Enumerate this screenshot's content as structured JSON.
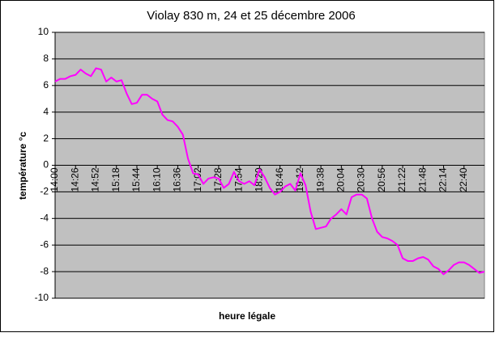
{
  "chart_data": {
    "type": "line",
    "title": "Violay 830 m, 24 et 25 décembre 2006",
    "x_label": "heure légale",
    "y_label": "température °c",
    "categories": [
      "14:00",
      null,
      null,
      null,
      "14:26",
      null,
      null,
      null,
      "14:52",
      null,
      null,
      null,
      "15:18",
      null,
      null,
      null,
      "15:44",
      null,
      null,
      null,
      "16:10",
      null,
      null,
      null,
      "16:36",
      null,
      null,
      null,
      "17:02",
      null,
      null,
      null,
      "17:28",
      null,
      null,
      null,
      "17:54",
      null,
      null,
      null,
      "18:20",
      null,
      null,
      null,
      "18:46",
      null,
      null,
      null,
      "19:12",
      null,
      null,
      null,
      "19:38",
      null,
      null,
      null,
      "20:04",
      null,
      null,
      null,
      "20:30",
      null,
      null,
      null,
      "20:56",
      null,
      null,
      null,
      "21:22",
      null,
      null,
      null,
      "21:48",
      null,
      null,
      null,
      "22:14",
      null,
      null,
      null,
      "22:40",
      null,
      null,
      null,
      null
    ],
    "series": [
      {
        "color": "#ff00ff",
        "values": [
          6.3,
          6.5,
          6.5,
          6.7,
          6.8,
          7.2,
          6.9,
          6.7,
          7.3,
          7.2,
          6.3,
          6.6,
          6.3,
          6.4,
          5.4,
          4.6,
          4.7,
          5.3,
          5.3,
          5.0,
          4.8,
          3.8,
          3.4,
          3.3,
          2.9,
          2.3,
          0.5,
          -0.6,
          -0.7,
          -1.4,
          -1.0,
          -0.9,
          -1.0,
          -1.7,
          -1.4,
          -0.5,
          -1.2,
          -1.4,
          -1.2,
          -1.5,
          -0.3,
          -0.9,
          -1.7,
          -2.2,
          -2.0,
          -1.6,
          -1.4,
          -1.9,
          -0.6,
          -1.5,
          -3.5,
          -4.8,
          -4.7,
          -4.6,
          -4.0,
          -3.7,
          -3.3,
          -3.7,
          -2.4,
          -2.2,
          -2.2,
          -2.5,
          -4.0,
          -5.0,
          -5.4,
          -5.5,
          -5.7,
          -6.0,
          -7.0,
          -7.2,
          -7.2,
          -7.0,
          -6.9,
          -7.1,
          -7.6,
          -7.8,
          -8.2,
          -7.9,
          -7.5,
          -7.3,
          -7.3,
          -7.5,
          -7.8,
          -8.1,
          -8.0
        ]
      }
    ],
    "ylim": [
      -10,
      10
    ],
    "yticks": [
      -10,
      -8,
      -6,
      -4,
      -2,
      0,
      2,
      4,
      6,
      8,
      10
    ],
    "grid": true,
    "plot_background": "#c0c0c0"
  }
}
